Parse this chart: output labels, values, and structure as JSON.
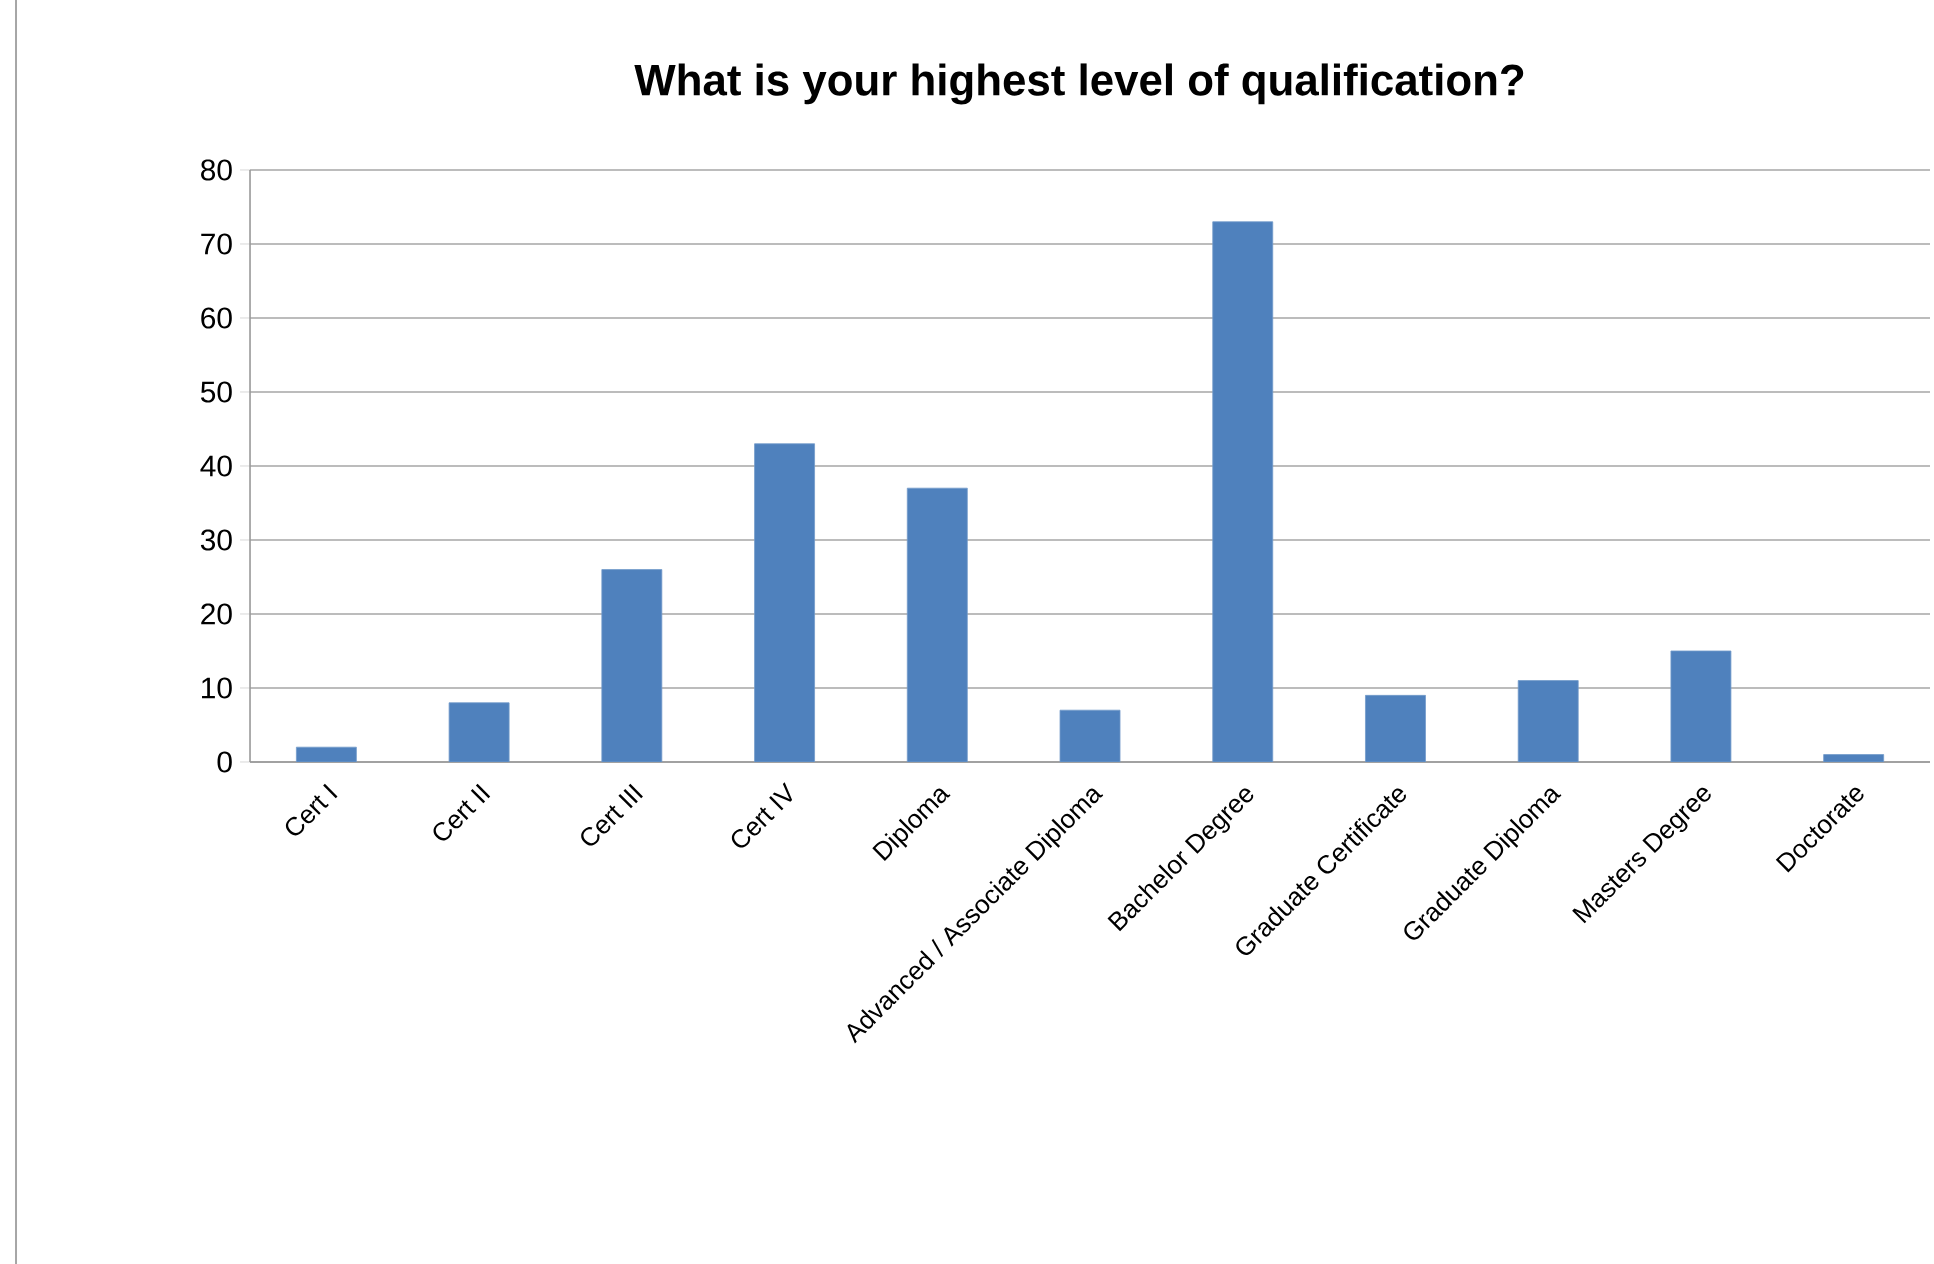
{
  "chart_data": {
    "type": "bar",
    "title": "What is your highest level of qualification?",
    "categories": [
      "Cert I",
      "Cert II",
      "Cert III",
      "Cert IV",
      "Diploma",
      "Advanced / Associate Diploma",
      "Bachelor Degree",
      "Graduate Certificate",
      "Graduate Diploma",
      "Masters Degree",
      "Doctorate"
    ],
    "values": [
      2,
      8,
      26,
      43,
      37,
      7,
      73,
      9,
      11,
      15,
      1
    ],
    "color": "#4f81bd",
    "ylim": [
      0,
      80
    ],
    "yticks": [
      0,
      10,
      20,
      30,
      40,
      50,
      60,
      70,
      80
    ],
    "grid": "y"
  }
}
